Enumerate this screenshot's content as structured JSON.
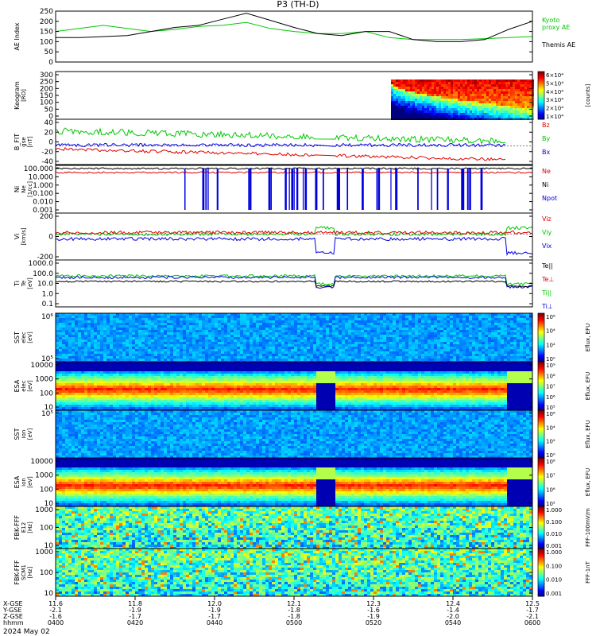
{
  "title": "P3 (TH-D)",
  "date_label": "2024 May 02",
  "chart_data": [
    {
      "type": "line",
      "panel": "ae",
      "ylabel": "AE Index",
      "yticks": [
        "250",
        "200",
        "150",
        "100",
        "50",
        "0"
      ],
      "ylim": [
        0,
        250
      ],
      "series": [
        {
          "name": "Kyoto proxy AE",
          "color": "#00c800",
          "x": [
            0,
            0.05,
            0.1,
            0.15,
            0.2,
            0.25,
            0.3,
            0.35,
            0.4,
            0.45,
            0.5,
            0.55,
            0.6,
            0.65,
            0.7,
            0.75,
            0.8,
            0.85,
            0.9,
            0.95,
            1
          ],
          "y": [
            150,
            165,
            180,
            165,
            150,
            160,
            175,
            180,
            195,
            165,
            150,
            140,
            140,
            150,
            120,
            110,
            110,
            110,
            115,
            120,
            125
          ]
        },
        {
          "name": "Themis AE",
          "color": "#000000",
          "x": [
            0,
            0.05,
            0.1,
            0.15,
            0.2,
            0.25,
            0.3,
            0.35,
            0.4,
            0.45,
            0.5,
            0.55,
            0.6,
            0.65,
            0.7,
            0.75,
            0.8,
            0.85,
            0.9,
            0.95,
            1
          ],
          "y": [
            120,
            120,
            125,
            130,
            150,
            170,
            180,
            210,
            240,
            205,
            170,
            140,
            130,
            150,
            150,
            110,
            100,
            100,
            110,
            160,
            200
          ]
        }
      ],
      "legend": [
        {
          "text": "Kyoto",
          "color": "#00c800"
        },
        {
          "text": "proxy AE",
          "color": "#00c800"
        },
        {
          "text": "Themis AE",
          "color": "#000000"
        }
      ]
    },
    {
      "type": "heatmap",
      "panel": "keogram",
      "ylabel": "Keogram",
      "yunit": "[RO]",
      "yticks": [
        "300",
        "250",
        "200",
        "150",
        "100",
        "50",
        "0"
      ],
      "colorbar_ticks": [
        "6×10⁴",
        "5×10⁴",
        "4×10⁴",
        "3×10⁴",
        "2×10⁴",
        "1×10⁴"
      ],
      "colorbar_label": "[counts]"
    },
    {
      "type": "line",
      "panel": "bfield",
      "ylabel": "B_FIT",
      "yunit": "[nT]",
      "ysub": "gse",
      "yticks": [
        "40",
        "20",
        "0",
        "-20",
        "-40"
      ],
      "ylim": [
        -50,
        50
      ],
      "series": [
        {
          "name": "Bz",
          "color": "#e00000"
        },
        {
          "name": "By",
          "color": "#00c800"
        },
        {
          "name": "Bx",
          "color": "#0000e0"
        }
      ]
    },
    {
      "type": "line",
      "panel": "density",
      "ylabel": "Ni",
      "yunit": "[1/cc]",
      "ysub": "Ne",
      "yticks": [
        "100.000",
        "10.000",
        "1.000",
        "0.100",
        "0.010",
        "0.001"
      ],
      "series": [
        {
          "name": "Ne",
          "color": "#e00000"
        },
        {
          "name": "Ni",
          "color": "#000000"
        },
        {
          "name": "Npot",
          "color": "#0000e0"
        }
      ]
    },
    {
      "type": "line",
      "panel": "velocity",
      "ylabel": "Vi",
      "yunit": "[km/s]",
      "yticks": [
        "200",
        "0",
        "-200"
      ],
      "series": [
        {
          "name": "Viz",
          "color": "#e00000"
        },
        {
          "name": "Viy",
          "color": "#00c800"
        },
        {
          "name": "Vix",
          "color": "#0000e0"
        }
      ]
    },
    {
      "type": "line",
      "panel": "temperature",
      "ylabel": "Ti",
      "yunit": "[eV]",
      "ysub": "Te",
      "yticks": [
        "1000.0",
        "100.0",
        "10.0",
        "1.0",
        "0.1"
      ],
      "series": [
        {
          "name": "Te||",
          "color": "#000000"
        },
        {
          "name": "Te⊥",
          "color": "#e00000"
        },
        {
          "name": "Ti||",
          "color": "#00c800"
        },
        {
          "name": "Ti⊥",
          "color": "#0000e0"
        }
      ]
    },
    {
      "type": "heatmap",
      "panel": "sst_elec",
      "ylabel": "SST",
      "ysub": "elec",
      "yunit": "[eV]",
      "yticks": [
        "10⁶",
        "10⁵"
      ],
      "colorbar_ticks": [
        "10⁶",
        "10⁴",
        "10²",
        "10⁰"
      ],
      "colorbar_label": "Eflux, EFU"
    },
    {
      "type": "heatmap",
      "panel": "esa_elec",
      "ylabel": "ESA",
      "ysub": "elec",
      "yunit": "[eV]",
      "yticks": [
        "10000",
        "1000",
        "100",
        "10"
      ],
      "colorbar_ticks": [
        "10⁹",
        "10⁸",
        "10⁷",
        "10⁶",
        "10⁵"
      ],
      "colorbar_label": "Eflux, EFU"
    },
    {
      "type": "heatmap",
      "panel": "sst_ion",
      "ylabel": "SST",
      "ysub": "ion",
      "yunit": "[eV]",
      "yticks": [
        "10⁵"
      ],
      "colorbar_ticks": [
        "10⁶",
        "10⁴",
        "10²",
        "10⁰"
      ],
      "colorbar_label": "Eflux, EFU"
    },
    {
      "type": "heatmap",
      "panel": "esa_ion",
      "ylabel": "ESA",
      "ysub": "ion",
      "yunit": "[eV]",
      "yticks": [
        "10000",
        "1000",
        "100",
        "10"
      ],
      "colorbar_ticks": [
        "10⁸",
        "10⁷",
        "10⁶",
        "10⁵"
      ],
      "colorbar_label": "Eflux, EFU"
    },
    {
      "type": "heatmap",
      "panel": "fbk_e",
      "ylabel": "FBK-FFF",
      "ysub": "E12",
      "yunit": "[Hz]",
      "yticks": [
        "1000",
        "100",
        "10"
      ],
      "colorbar_ticks": [
        "1.000",
        "0.100",
        "0.010",
        "0.001"
      ],
      "colorbar_label": "FFF-100mV/m"
    },
    {
      "type": "heatmap",
      "panel": "fbk_b",
      "ylabel": "FBK-FFF",
      "ysub": "SCM1",
      "yunit": "[Hz]",
      "yticks": [
        "1000",
        "100",
        "10"
      ],
      "colorbar_ticks": [
        "1.000",
        "0.100",
        "0.010",
        "0.001"
      ],
      "colorbar_label": "FFF-1nT"
    }
  ],
  "xaxis": {
    "row_labels": [
      "X-GSE",
      "Y-GSE",
      "Z-GSE",
      "hhmm"
    ],
    "ticks": [
      {
        "vals": [
          "11.6",
          "-2.1",
          "-1.6",
          "0400"
        ]
      },
      {
        "vals": [
          "11.8",
          "-1.9",
          "-1.7",
          "0420"
        ]
      },
      {
        "vals": [
          "12.0",
          "-1.9",
          "-1.7",
          "0440"
        ]
      },
      {
        "vals": [
          "12.1",
          "-1.8",
          "-1.8",
          "0500"
        ]
      },
      {
        "vals": [
          "12.3",
          "-1.6",
          "-1.9",
          "0520"
        ]
      },
      {
        "vals": [
          "12.4",
          "-1.4",
          "-2.0",
          "0540"
        ]
      },
      {
        "vals": [
          "12.5",
          "-1.7",
          "-2.1",
          "0600"
        ]
      }
    ]
  }
}
